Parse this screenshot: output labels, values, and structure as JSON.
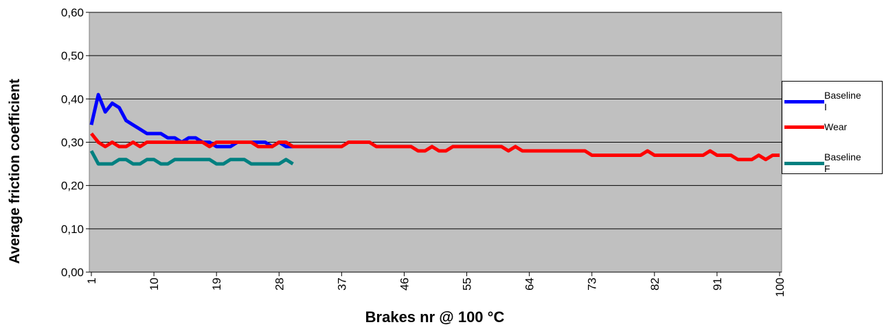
{
  "chart_data": {
    "type": "line",
    "x_label": "Brakes nr @ 100 °C",
    "y_label": "Average friction coefficient",
    "x": [
      1,
      2,
      3,
      4,
      5,
      6,
      7,
      8,
      9,
      10,
      11,
      12,
      13,
      14,
      15,
      16,
      17,
      18,
      19,
      20,
      21,
      22,
      23,
      24,
      25,
      26,
      27,
      28,
      29,
      30,
      31,
      32,
      33,
      34,
      35,
      36,
      37,
      38,
      39,
      40,
      41,
      42,
      43,
      44,
      45,
      46,
      47,
      48,
      49,
      50,
      51,
      52,
      53,
      54,
      55,
      56,
      57,
      58,
      59,
      60,
      61,
      62,
      63,
      64,
      65,
      66,
      67,
      68,
      69,
      70,
      71,
      72,
      73,
      74,
      75,
      76,
      77,
      78,
      79,
      80,
      81,
      82,
      83,
      84,
      85,
      86,
      87,
      88,
      89,
      90,
      91,
      92,
      93,
      94,
      95,
      96,
      97,
      98,
      99,
      100
    ],
    "xlim": [
      1,
      100
    ],
    "xticks": [
      1,
      10,
      19,
      28,
      37,
      46,
      55,
      64,
      73,
      82,
      91,
      100
    ],
    "ylim": [
      0,
      0.6
    ],
    "yticks": [
      {
        "value": 0,
        "label": "0,00"
      },
      {
        "value": 0.1,
        "label": "0,10"
      },
      {
        "value": 0.2,
        "label": "0,20"
      },
      {
        "value": 0.3,
        "label": "0,30"
      },
      {
        "value": 0.4,
        "label": "0,40"
      },
      {
        "value": 0.5,
        "label": "0,50"
      },
      {
        "value": 0.6,
        "label": "0,60"
      }
    ],
    "grid": true,
    "legend": "right",
    "series": [
      {
        "name": "Baseline I",
        "color": "#0000ff",
        "values": [
          0.34,
          0.41,
          0.37,
          0.39,
          0.38,
          0.35,
          0.34,
          0.33,
          0.32,
          0.32,
          0.32,
          0.31,
          0.31,
          0.3,
          0.31,
          0.31,
          0.3,
          0.3,
          0.29,
          0.29,
          0.29,
          0.3,
          0.3,
          0.3,
          0.3,
          0.3,
          0.29,
          0.3,
          0.29,
          0.29,
          null,
          null,
          null,
          null,
          null,
          null,
          null,
          null,
          null,
          null,
          null,
          null,
          null,
          null,
          null,
          null,
          null,
          null,
          null,
          null,
          null,
          null,
          null,
          null,
          null,
          null,
          null,
          null,
          null,
          null,
          null,
          null,
          null,
          null,
          null,
          null,
          null,
          null,
          null,
          null,
          null,
          null,
          null,
          null,
          null,
          null,
          null,
          null,
          null,
          null,
          null,
          null,
          null,
          null,
          null,
          null,
          null,
          null,
          null,
          null,
          null,
          null,
          null,
          null,
          null,
          null,
          null,
          null,
          null,
          null
        ]
      },
      {
        "name": "Wear",
        "color": "#ff0000",
        "values": [
          0.32,
          0.3,
          0.29,
          0.3,
          0.29,
          0.29,
          0.3,
          0.29,
          0.3,
          0.3,
          0.3,
          0.3,
          0.3,
          0.3,
          0.3,
          0.3,
          0.3,
          0.29,
          0.3,
          0.3,
          0.3,
          0.3,
          0.3,
          0.3,
          0.29,
          0.29,
          0.29,
          0.3,
          0.3,
          0.29,
          0.29,
          0.29,
          0.29,
          0.29,
          0.29,
          0.29,
          0.29,
          0.3,
          0.3,
          0.3,
          0.3,
          0.29,
          0.29,
          0.29,
          0.29,
          0.29,
          0.29,
          0.28,
          0.28,
          0.29,
          0.28,
          0.28,
          0.29,
          0.29,
          0.29,
          0.29,
          0.29,
          0.29,
          0.29,
          0.29,
          0.28,
          0.29,
          0.28,
          0.28,
          0.28,
          0.28,
          0.28,
          0.28,
          0.28,
          0.28,
          0.28,
          0.28,
          0.27,
          0.27,
          0.27,
          0.27,
          0.27,
          0.27,
          0.27,
          0.27,
          0.28,
          0.27,
          0.27,
          0.27,
          0.27,
          0.27,
          0.27,
          0.27,
          0.27,
          0.28,
          0.27,
          0.27,
          0.27,
          0.26,
          0.26,
          0.26,
          0.27,
          0.26,
          0.27,
          0.27
        ]
      },
      {
        "name": "Baseline F",
        "color": "#008080",
        "values": [
          0.28,
          0.25,
          0.25,
          0.25,
          0.26,
          0.26,
          0.25,
          0.25,
          0.26,
          0.26,
          0.25,
          0.25,
          0.26,
          0.26,
          0.26,
          0.26,
          0.26,
          0.26,
          0.25,
          0.25,
          0.26,
          0.26,
          0.26,
          0.25,
          0.25,
          0.25,
          0.25,
          0.25,
          0.26,
          0.25,
          null,
          null,
          null,
          null,
          null,
          null,
          null,
          null,
          null,
          null,
          null,
          null,
          null,
          null,
          null,
          null,
          null,
          null,
          null,
          null,
          null,
          null,
          null,
          null,
          null,
          null,
          null,
          null,
          null,
          null,
          null,
          null,
          null,
          null,
          null,
          null,
          null,
          null,
          null,
          null,
          null,
          null,
          null,
          null,
          null,
          null,
          null,
          null,
          null,
          null,
          null,
          null,
          null,
          null,
          null,
          null,
          null,
          null,
          null,
          null,
          null,
          null,
          null,
          null,
          null,
          null,
          null,
          null,
          null,
          null
        ]
      }
    ]
  }
}
